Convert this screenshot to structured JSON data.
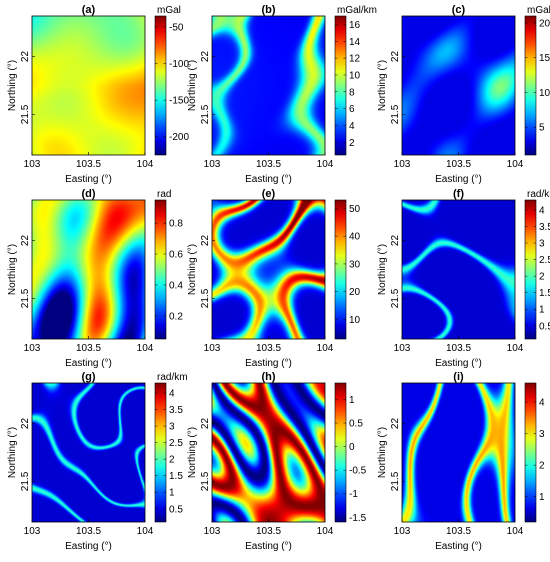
{
  "figure": {
    "xlabel": "Easting (°)",
    "ylabel": "Northing (°)",
    "xticks": [
      "103",
      "103.5",
      "104"
    ],
    "yticks": [
      "22",
      "21.5"
    ]
  },
  "chart_data": [
    {
      "panel": "(a)",
      "type": "heatmap",
      "unit": "mGal",
      "colorbar_ticks": [
        "-50",
        "-100",
        "-150",
        "-200"
      ],
      "clim": [
        -225,
        -35
      ],
      "pattern": "smooth-regional",
      "xlim": [
        103,
        104
      ],
      "ylim": [
        21.15,
        22.35
      ]
    },
    {
      "panel": "(b)",
      "type": "heatmap",
      "unit": "mGal/km",
      "colorbar_ticks": [
        "16",
        "14",
        "12",
        "10",
        "8",
        "6",
        "4",
        "2"
      ],
      "clim": [
        0.5,
        17
      ],
      "pattern": "lineament-sparse",
      "xlim": [
        103,
        104
      ],
      "ylim": [
        21.15,
        22.35
      ]
    },
    {
      "panel": "(c)",
      "type": "heatmap",
      "unit": "mGal/km",
      "colorbar_ticks": [
        "20",
        "15",
        "10",
        "5"
      ],
      "clim": [
        1,
        21
      ],
      "pattern": "blobs",
      "xlim": [
        103,
        104
      ],
      "ylim": [
        21.15,
        22.35
      ]
    },
    {
      "panel": "(d)",
      "type": "heatmap",
      "unit": "rad",
      "colorbar_ticks": [
        "0.8",
        "0.6",
        "0.4",
        "0.2"
      ],
      "clim": [
        0.05,
        0.95
      ],
      "pattern": "dense-bands",
      "xlim": [
        103,
        104
      ],
      "ylim": [
        21.15,
        22.35
      ]
    },
    {
      "panel": "(e)",
      "type": "heatmap",
      "unit": "",
      "colorbar_ticks": [
        "50",
        "40",
        "30",
        "20",
        "10"
      ],
      "clim": [
        3,
        53
      ],
      "pattern": "bands-on-low",
      "xlim": [
        103,
        104
      ],
      "ylim": [
        21.15,
        22.35
      ]
    },
    {
      "panel": "(f)",
      "type": "heatmap",
      "unit": "rad/km",
      "colorbar_ticks": [
        "4",
        "3.5",
        "3",
        "2.5",
        "2",
        "1.5",
        "1",
        "0.5"
      ],
      "clim": [
        0.1,
        4.3
      ],
      "pattern": "thin-lines",
      "xlim": [
        103,
        104
      ],
      "ylim": [
        21.15,
        22.35
      ]
    },
    {
      "panel": "(g)",
      "type": "heatmap",
      "unit": "rad/km",
      "colorbar_ticks": [
        "4",
        "3.5",
        "3",
        "2.5",
        "2",
        "1.5",
        "1",
        "0.5"
      ],
      "clim": [
        0.1,
        4.3
      ],
      "pattern": "thin-lines",
      "xlim": [
        103,
        104
      ],
      "ylim": [
        21.15,
        22.35
      ]
    },
    {
      "panel": "(h)",
      "type": "heatmap",
      "unit": "",
      "colorbar_ticks": [
        "1",
        "0.5",
        "0",
        "-0.5",
        "-1",
        "-1.5"
      ],
      "clim": [
        -1.6,
        1.35
      ],
      "pattern": "full-range-bands",
      "xlim": [
        103,
        104
      ],
      "ylim": [
        21.15,
        22.35
      ]
    },
    {
      "panel": "(i)",
      "type": "heatmap",
      "unit": "",
      "colorbar_ticks": [
        "4",
        "3",
        "2",
        "1"
      ],
      "clim": [
        0.2,
        4.6
      ],
      "pattern": "green-lines",
      "xlim": [
        103,
        104
      ],
      "ylim": [
        21.15,
        22.35
      ]
    }
  ]
}
